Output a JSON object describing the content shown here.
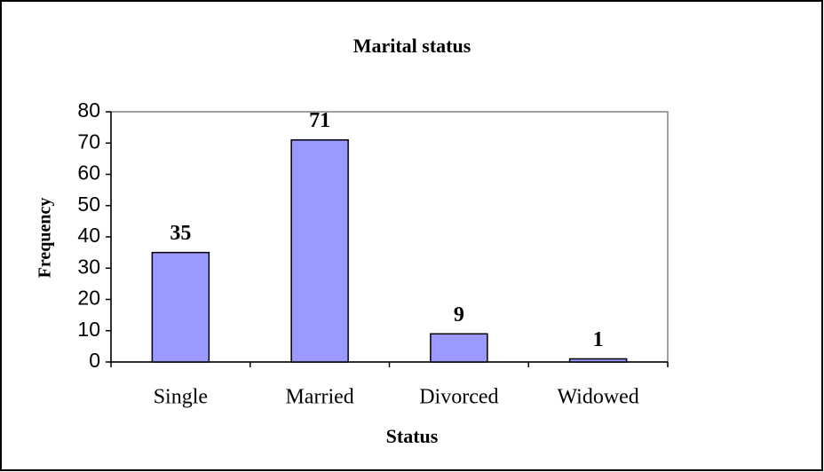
{
  "chart_data": {
    "type": "bar",
    "title": "Marital status",
    "x_label": "Status",
    "y_label": "Frequency",
    "categories": [
      "Single",
      "Married",
      "Divorced",
      "Widowed"
    ],
    "values": [
      35,
      71,
      9,
      1
    ],
    "color": "#9999ff",
    "ylim": [
      0,
      80
    ],
    "yticks": [
      0,
      10,
      20,
      30,
      40,
      50,
      60,
      70,
      80
    ],
    "grid": false
  }
}
